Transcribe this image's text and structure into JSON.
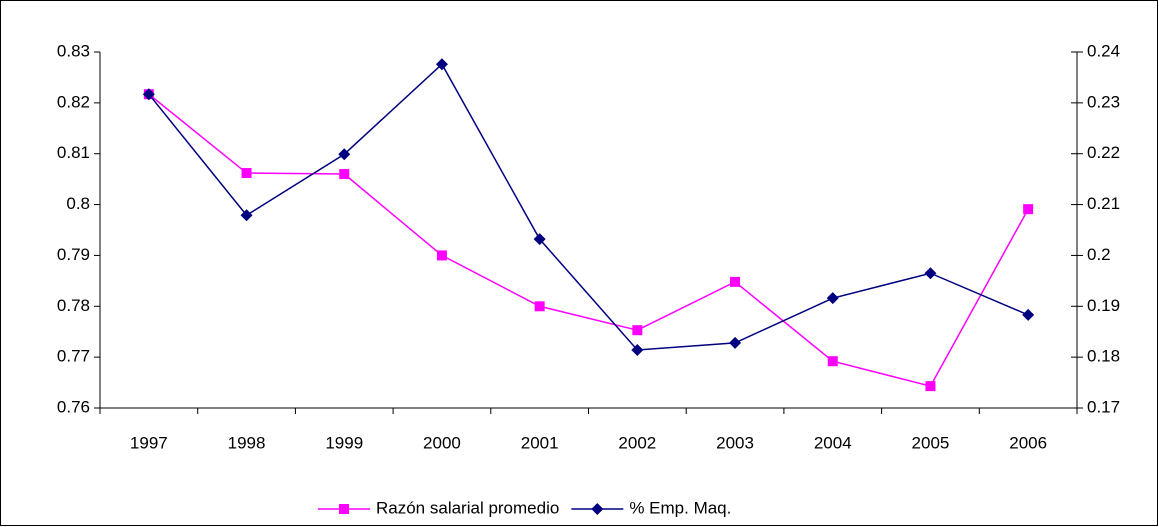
{
  "chart_data": {
    "type": "line",
    "categories": [
      "1997",
      "1998",
      "1999",
      "2000",
      "2001",
      "2002",
      "2003",
      "2004",
      "2005",
      "2006"
    ],
    "series": [
      {
        "name": "Razón salarial promedio",
        "color": "#ff00ff",
        "marker": "square",
        "values": [
          0.8217,
          0.8062,
          0.806,
          0.79,
          0.78,
          0.7753,
          0.7848,
          0.7692,
          0.7643,
          0.7991
        ]
      },
      {
        "name": "% Emp. Maq.",
        "color": "#000080",
        "marker": "diamond",
        "axis": "y2",
        "values": [
          0.2317,
          0.2079,
          0.2199,
          0.2376,
          0.2032,
          0.1814,
          0.1828,
          0.1916,
          0.1965,
          0.1883
        ]
      }
    ],
    "ylim": [
      0.76,
      0.83
    ],
    "yticks": [
      0.76,
      0.77,
      0.78,
      0.79,
      0.8,
      0.81,
      0.82,
      0.83
    ],
    "y2lim": [
      0.17,
      0.24
    ],
    "y2ticks": [
      0.17,
      0.18,
      0.19,
      0.2,
      0.21,
      0.22,
      0.23,
      0.24
    ],
    "grid": false,
    "legend": "bottom"
  }
}
